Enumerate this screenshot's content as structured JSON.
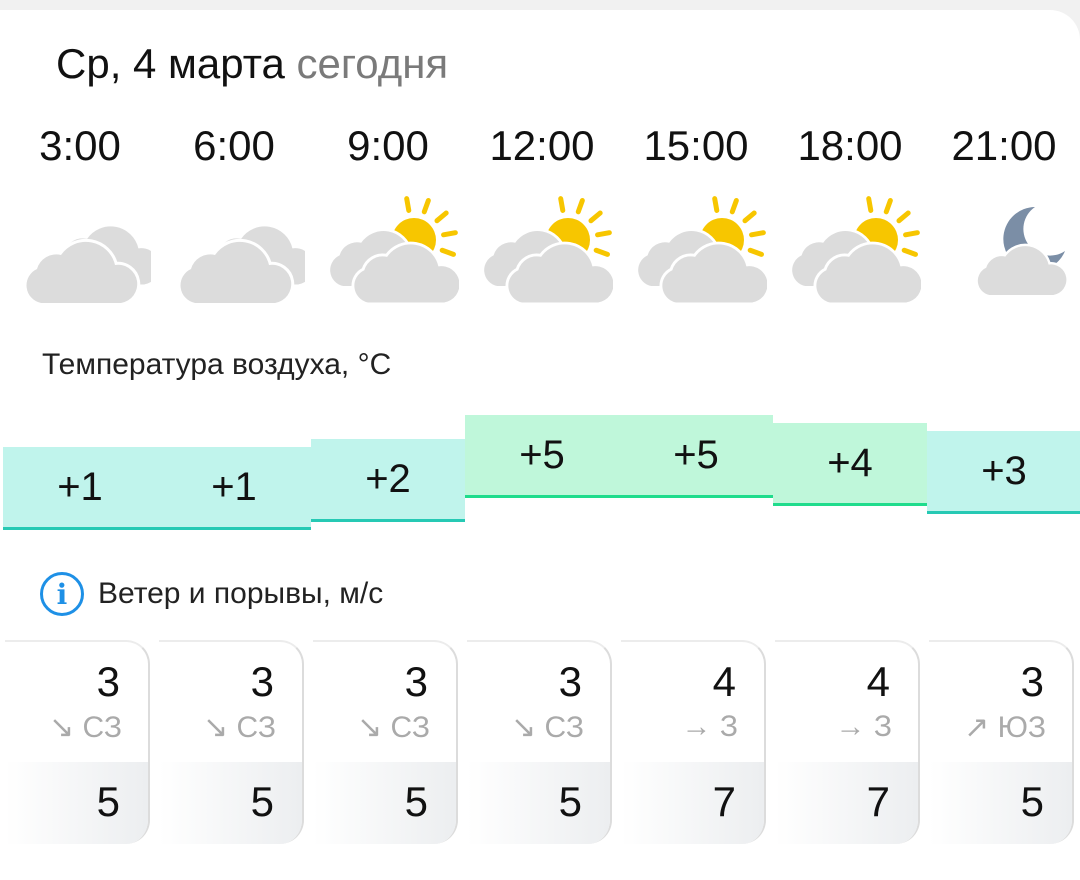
{
  "header": {
    "date": "Ср, 4 марта",
    "day_label": "сегодня"
  },
  "colors": {
    "cloud": "#dcdcdc",
    "sun": "#f7c600",
    "moon": "#7b8ea6",
    "temp_low_fill": "#c0f4ec",
    "temp_low_line": "#26c9b4",
    "temp_high_fill": "#bff7da",
    "temp_high_line": "#1fdc8c",
    "info": "#1e90e6"
  },
  "hours": [
    {
      "time": "3:00",
      "icon": "cloudy",
      "temp": "+1",
      "temp_value": 1,
      "wind": "3",
      "dir_arrow": "↘",
      "dir": "СЗ",
      "gust": "5"
    },
    {
      "time": "6:00",
      "icon": "cloudy",
      "temp": "+1",
      "temp_value": 1,
      "wind": "3",
      "dir_arrow": "↘",
      "dir": "СЗ",
      "gust": "5"
    },
    {
      "time": "9:00",
      "icon": "partly-cloudy-day",
      "temp": "+2",
      "temp_value": 2,
      "wind": "3",
      "dir_arrow": "↘",
      "dir": "СЗ",
      "gust": "5"
    },
    {
      "time": "12:00",
      "icon": "partly-cloudy-day",
      "temp": "+5",
      "temp_value": 5,
      "wind": "3",
      "dir_arrow": "↘",
      "dir": "СЗ",
      "gust": "5"
    },
    {
      "time": "15:00",
      "icon": "partly-cloudy-day",
      "temp": "+5",
      "temp_value": 5,
      "wind": "4",
      "dir_arrow": "→",
      "dir": "З",
      "gust": "7"
    },
    {
      "time": "18:00",
      "icon": "partly-cloudy-day",
      "temp": "+4",
      "temp_value": 4,
      "wind": "4",
      "dir_arrow": "→",
      "dir": "З",
      "gust": "7"
    },
    {
      "time": "21:00",
      "icon": "partly-cloudy-night",
      "temp": "+3",
      "temp_value": 3,
      "wind": "3",
      "dir_arrow": "↗",
      "dir": "ЮЗ",
      "gust": "5"
    }
  ],
  "temperature": {
    "label": "Температура воздуха, °C"
  },
  "wind": {
    "label": "Ветер и порывы, м/с",
    "info_icon": "i"
  }
}
